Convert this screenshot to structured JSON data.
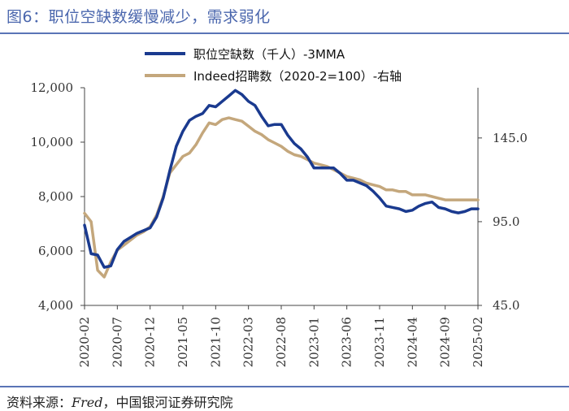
{
  "figure": {
    "title": "图6：职位空缺数缓慢减少，需求弱化",
    "source_prefix": "资料来源：",
    "source_italic": "Fred",
    "source_suffix": "，中国银河证券研究院"
  },
  "colors": {
    "series_left": "#1a3a8f",
    "series_right": "#c4a77c",
    "title": "#4a66ad",
    "rule": "#5a74b6"
  },
  "chart_data": {
    "type": "line",
    "title": "",
    "xlabel": "",
    "ylabel": "",
    "x_tick_labels": [
      "2020-02",
      "2020-07",
      "2020-12",
      "2021-05",
      "2021-10",
      "2022-03",
      "2022-08",
      "2023-01",
      "2023-06",
      "2023-11",
      "2024-04",
      "2024-09",
      "2025-02"
    ],
    "y_left": {
      "ticks": [
        "4,000",
        "6,000",
        "8,000",
        "10,000",
        "12,000"
      ],
      "range": [
        4000,
        12000
      ]
    },
    "y_right": {
      "ticks": [
        "45.0",
        "95.0",
        "145.0"
      ],
      "range": [
        45,
        175
      ]
    },
    "x_range": [
      0,
      60
    ],
    "series": [
      {
        "name": "职位空缺数（千人）-3MMA",
        "axis": "left",
        "x": [
          0,
          1,
          2,
          3,
          4,
          5,
          6,
          7,
          8,
          9,
          10,
          11,
          12,
          13,
          14,
          15,
          16,
          17,
          18,
          19,
          20,
          21,
          22,
          23,
          24,
          25,
          26,
          27,
          28,
          29,
          30,
          31,
          32,
          33,
          34,
          35,
          36,
          37,
          38,
          39,
          40,
          41,
          42,
          43,
          44,
          45,
          46,
          47,
          48,
          49,
          50,
          51,
          52,
          53,
          54,
          55,
          56,
          57,
          58,
          59,
          60
        ],
        "values": [
          6950,
          5900,
          5850,
          5400,
          5450,
          6050,
          6350,
          6500,
          6650,
          6750,
          6850,
          7250,
          7950,
          8950,
          9850,
          10400,
          10800,
          10950,
          11050,
          11350,
          11300,
          11500,
          11700,
          11900,
          11750,
          11500,
          11350,
          10950,
          10600,
          10650,
          10650,
          10250,
          9950,
          9750,
          9450,
          9050,
          9050,
          9050,
          9050,
          8850,
          8600,
          8600,
          8500,
          8400,
          8200,
          7950,
          7650,
          7600,
          7550,
          7450,
          7500,
          7650,
          7750,
          7800,
          7600,
          7550,
          7450,
          7400,
          7450,
          7550,
          7550
        ]
      },
      {
        "name": "Indeed招聘数（2020-2=100）-右轴",
        "axis": "right",
        "x": [
          0,
          1,
          2,
          3,
          4,
          5,
          6,
          7,
          8,
          9,
          10,
          11,
          12,
          13,
          14,
          15,
          16,
          17,
          18,
          19,
          20,
          21,
          22,
          23,
          24,
          25,
          26,
          27,
          28,
          29,
          30,
          31,
          32,
          33,
          34,
          35,
          36,
          37,
          38,
          39,
          40,
          41,
          42,
          43,
          44,
          45,
          46,
          47,
          48,
          49,
          50,
          51,
          52,
          53,
          54,
          55,
          56,
          57,
          58,
          59,
          60
        ],
        "values": [
          100,
          95,
          66,
          62,
          71,
          78,
          81,
          84,
          87,
          89,
          92,
          99,
          110,
          124,
          129,
          134,
          136,
          141,
          148,
          154,
          153,
          156,
          157,
          156,
          155,
          152,
          149,
          147,
          144,
          142,
          140,
          137,
          135,
          134,
          132,
          130,
          129,
          128,
          126,
          124,
          122,
          121,
          120,
          118,
          117,
          116,
          114,
          114,
          113,
          113,
          111,
          111,
          111,
          110,
          109,
          108,
          108,
          108,
          108,
          108,
          108
        ]
      }
    ],
    "x_plot_count": 58,
    "legend_position": "top-center"
  }
}
